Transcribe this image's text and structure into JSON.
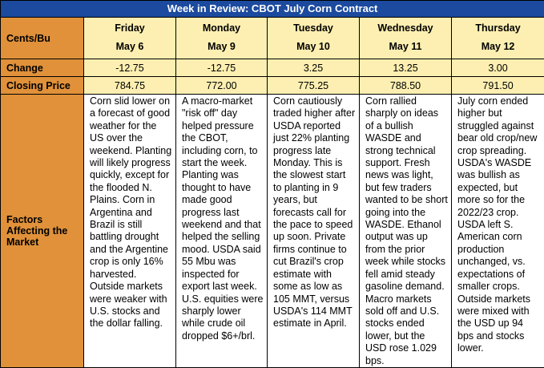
{
  "title": "Week in Review: CBOT July Corn Contract",
  "row_labels": {
    "unit": "Cents/Bu",
    "change": "Change",
    "closing": "Closing Price",
    "factors": "Factors Affecting the Market"
  },
  "days": [
    {
      "day": "Friday",
      "date": "May 6",
      "change": "-12.75",
      "close": "784.75",
      "factors": "Corn slid lower on a forecast of good weather for the US over the weekend. Planting will likely progress quickly, except for the flooded N. Plains. Corn in Argentina and Brazil is still battling drought and the Argentine crop is only 16% harvested. Outside markets were weaker with U.S. stocks and the dollar falling."
    },
    {
      "day": "Monday",
      "date": "May 9",
      "change": "-12.75",
      "close": "772.00",
      "factors": "A macro-market \"risk off\" day helped pressure the CBOT, including corn, to start the week. Planting was thought to have made good progress last weekend and that helped the selling mood. USDA said 55 Mbu was inspected for export last week. U.S. equities were sharply lower while crude oil dropped $6+/brl."
    },
    {
      "day": "Tuesday",
      "date": "May 10",
      "change": "3.25",
      "close": "775.25",
      "factors": "Corn cautiously traded higher after USDA reported just 22% planting progress late Monday. This is the slowest start to planting in 9 years, but forecasts call for the pace to speed up soon. Private firms continue to cut Brazil's crop estimate with some as low as 105 MMT, versus USDA's 114 MMT estimate in April."
    },
    {
      "day": "Wednesday",
      "date": "May 11",
      "change": "13.25",
      "close": "788.50",
      "factors": "Corn rallied sharply on ideas of a bullish WASDE and strong technical support. Fresh news was light, but few traders wanted to be short going into the WASDE. Ethanol output was up from the prior week while stocks fell amid steady gasoline demand. Macro markets sold off and U.S. stocks ended lower, but the USD rose 1.029 bps."
    },
    {
      "day": "Thursday",
      "date": "May 12",
      "change": "3.00",
      "close": "791.50",
      "factors": "July corn ended higher but struggled against bear old crop/new crop spreading. USDA's WASDE was bullish as expected, but more so for the 2022/23 crop. USDA left S. American corn production unchanged, vs. expectations of smaller crops. Outside markets were mixed with the USD up 94 bps and stocks lower."
    }
  ]
}
